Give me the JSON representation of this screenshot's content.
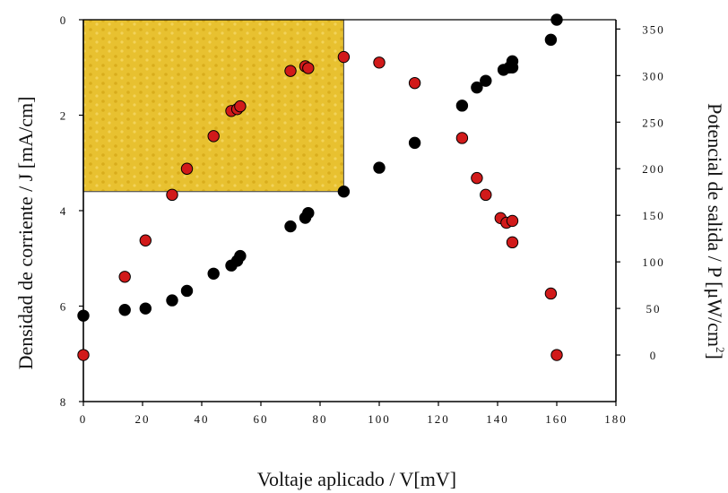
{
  "chart_data": {
    "type": "scatter",
    "title": "",
    "xlabel": "Voltaje aplicado / V[mV]",
    "ylabel_left": "Densidad de corriente / J [mA/cm]",
    "ylabel_right_main": "Potencial de salida / P [μW/cm",
    "ylabel_right_sup": "2",
    "ylabel_right_close": "]",
    "xlim": [
      0,
      180
    ],
    "ylim_left": [
      8,
      0
    ],
    "ylim_right": [
      -50,
      360
    ],
    "x_ticks": [
      "0",
      "20",
      "40",
      "60",
      "80",
      "100",
      "120",
      "140",
      "160",
      "180"
    ],
    "y_left_ticks": [
      "0",
      "2",
      "4",
      "6",
      "8"
    ],
    "y_right_ticks": [
      "0",
      "50",
      "100",
      "150",
      "200",
      "250",
      "300",
      "350"
    ],
    "highlight_rect": {
      "x": [
        0,
        88
      ],
      "y_left": [
        0,
        3.6
      ],
      "color": "#e8c130"
    },
    "series": [
      {
        "axis": "left",
        "color": "#000000",
        "points": [
          [
            0,
            6.2
          ],
          [
            14,
            6.08
          ],
          [
            21,
            6.05
          ],
          [
            30,
            5.88
          ],
          [
            35,
            5.68
          ],
          [
            44,
            5.32
          ],
          [
            50,
            5.15
          ],
          [
            52,
            5.05
          ],
          [
            53,
            4.95
          ],
          [
            70,
            4.33
          ],
          [
            75,
            4.15
          ],
          [
            76,
            4.05
          ],
          [
            88,
            3.6
          ],
          [
            100,
            3.1
          ],
          [
            112,
            2.58
          ],
          [
            128,
            1.8
          ],
          [
            133,
            1.42
          ],
          [
            136,
            1.28
          ],
          [
            142,
            1.05
          ],
          [
            144,
            1.0
          ],
          [
            145,
            1.0
          ],
          [
            145,
            0.87
          ],
          [
            158,
            0.42
          ],
          [
            160,
            0.0
          ]
        ]
      },
      {
        "axis": "right",
        "color": "#d11a1a",
        "points": [
          [
            0,
            0
          ],
          [
            14,
            84
          ],
          [
            21,
            123
          ],
          [
            30,
            172
          ],
          [
            35,
            200
          ],
          [
            44,
            235
          ],
          [
            50,
            262
          ],
          [
            52,
            264
          ],
          [
            53,
            267
          ],
          [
            70,
            305
          ],
          [
            75,
            310
          ],
          [
            76,
            308
          ],
          [
            88,
            320
          ],
          [
            100,
            314
          ],
          [
            112,
            292
          ],
          [
            128,
            233
          ],
          [
            133,
            190
          ],
          [
            136,
            172
          ],
          [
            141,
            147
          ],
          [
            143,
            142
          ],
          [
            145,
            144
          ],
          [
            145,
            121
          ],
          [
            158,
            66
          ],
          [
            160,
            0
          ]
        ]
      }
    ]
  }
}
